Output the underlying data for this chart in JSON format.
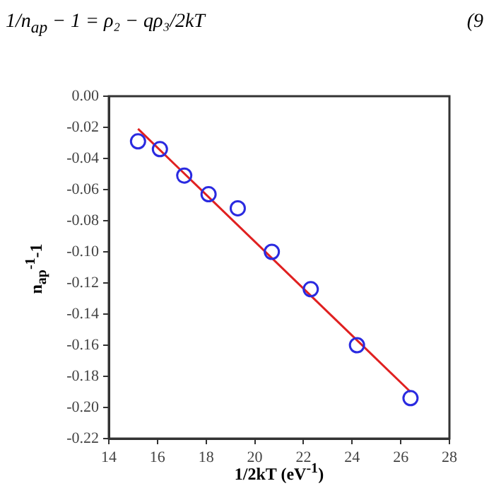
{
  "chart_data": {
    "type": "scatter",
    "xlabel": "1/2kT (eV$^{-1}$)",
    "ylabel": "n$_{ap}$$^{-1}$-1",
    "annotations": [
      "1/n$_{ap}$ − 1 = ρ₂ − qρ₃/2kT",
      "(9"
    ],
    "xlim": [
      14,
      28
    ],
    "xticks": [
      14,
      16,
      18,
      20,
      22,
      24,
      26,
      28
    ],
    "ylim": [
      -0.22,
      0
    ],
    "yticks": [
      {
        "value": 0,
        "label": "0.00"
      },
      {
        "value": -0.02,
        "label": "-0.02"
      },
      {
        "value": -0.04,
        "label": "-0.04"
      },
      {
        "value": -0.06,
        "label": "-0.06"
      },
      {
        "value": -0.08,
        "label": "-0.08"
      },
      {
        "value": -0.1,
        "label": "-0.10"
      },
      {
        "value": -0.12,
        "label": "-0.12"
      },
      {
        "value": -0.14,
        "label": "-0.14"
      },
      {
        "value": -0.16,
        "label": "-0.16"
      },
      {
        "value": -0.18,
        "label": "-0.18"
      },
      {
        "value": -0.2,
        "label": "-0.20"
      },
      {
        "value": -0.22,
        "label": "-0.22"
      }
    ],
    "grid": false,
    "legend": false,
    "marker": "circle",
    "series": [
      {
        "color": "#2a2ae0",
        "x": [
          15.2,
          16.1,
          17.1,
          18.1,
          19.3,
          20.7,
          22.3,
          24.2,
          26.4
        ],
        "values": [
          -0.029,
          -0.034,
          -0.051,
          -0.063,
          -0.072,
          -0.1,
          -0.124,
          -0.16,
          -0.194
        ]
      },
      {
        "type": "line",
        "color": "#e02020",
        "marker": "none",
        "x": [
          15.2,
          26.4
        ],
        "values": [
          -0.021,
          -0.19
        ]
      }
    ]
  }
}
